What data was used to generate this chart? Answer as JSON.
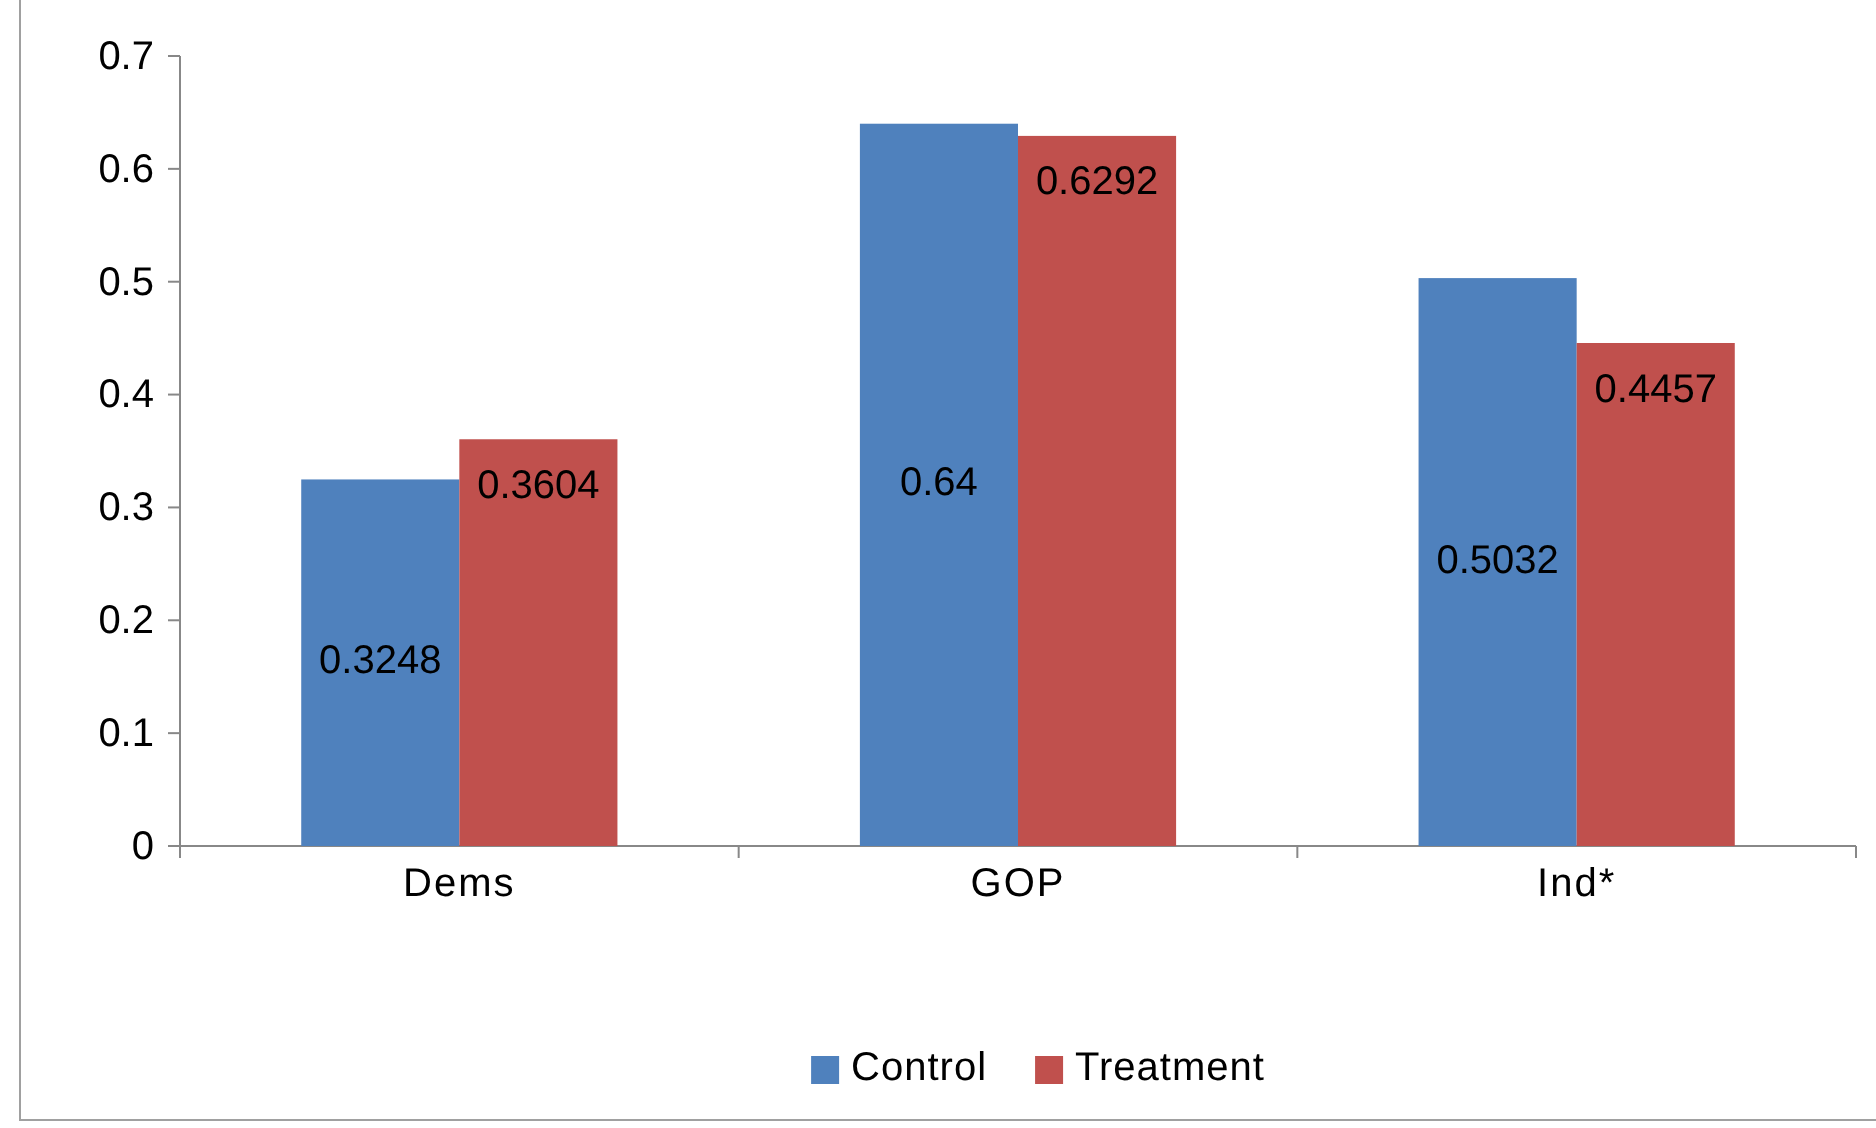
{
  "chart_data": {
    "type": "bar",
    "categories": [
      "Dems",
      "GOP",
      "Ind*"
    ],
    "series": [
      {
        "name": "Control",
        "color": "#4f81bd",
        "values": [
          0.3248,
          0.64,
          0.5032
        ]
      },
      {
        "name": "Treatment",
        "color": "#c0504d",
        "values": [
          0.3604,
          0.6292,
          0.4457
        ]
      }
    ],
    "ylim": [
      0,
      0.7
    ],
    "yticks": [
      0,
      0.1,
      0.2,
      0.3,
      0.4,
      0.5,
      0.6,
      0.7
    ],
    "grid": false,
    "legend": "bottom",
    "data_labels": true
  }
}
